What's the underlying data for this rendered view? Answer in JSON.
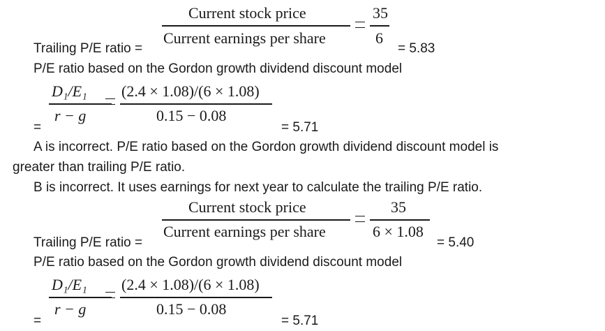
{
  "block1": {
    "num": "Current stock price",
    "den": "Current earnings per share",
    "rnum": "35",
    "rden": "6",
    "label": "Trailing P/E ratio =",
    "result": "= 5.83"
  },
  "gordon1": {
    "heading": "P/E ratio based on the Gordon growth dividend discount model",
    "lnum": "D₁/E₁",
    "lden": "r − g",
    "rnum": "(2.4 × 1.08)/(6 × 1.08)",
    "rden": "0.15 − 0.08",
    "leq": "=",
    "result": "= 5.71"
  },
  "explanations": {
    "a_line1": "A is incorrect. P/E ratio based on the Gordon growth dividend discount model is",
    "a_line2": "greater than trailing P/E ratio.",
    "b_line": "B is incorrect. It uses earnings for next year to calculate the trailing P/E ratio."
  },
  "block2": {
    "num": "Current stock price",
    "den": "Current earnings per share",
    "rnum": "35",
    "rden": "6 × 1.08",
    "label": "Trailing P/E ratio =",
    "result": "= 5.40"
  },
  "gordon2": {
    "heading": "P/E ratio based on the Gordon growth dividend discount model",
    "lnum": "D₁/E₁",
    "lden": "r − g",
    "rnum": "(2.4 × 1.08)/(6 × 1.08)",
    "rden": "0.15 − 0.08",
    "leq": "=",
    "result": "= 5.71"
  }
}
